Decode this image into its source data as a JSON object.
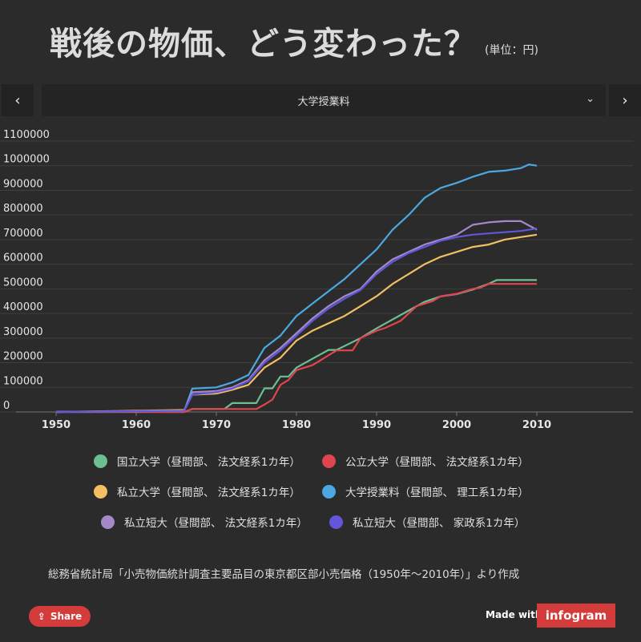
{
  "header": {
    "title": "戦後の物価、どう変わった？",
    "unit": "(単位：円)"
  },
  "selector": {
    "prev_icon": "‹",
    "next_icon": "›",
    "selected": "大学授業料",
    "caret_icon": "⌄"
  },
  "colors": {
    "national": "#6dbf92",
    "public": "#e0454f",
    "private": "#f2c062",
    "tuition": "#4aa9e0",
    "jc_law": "#a389c9",
    "jc_home": "#6356d8"
  },
  "chart_data": {
    "type": "line",
    "title": "戦後の物価、どう変わった？",
    "ylabel": "単位：円",
    "xlim": [
      1943,
      2022
    ],
    "ylim": [
      0,
      1100000
    ],
    "x_ticks": [
      1950,
      1960,
      1970,
      1980,
      1990,
      2000,
      2010
    ],
    "y_ticks": [
      0,
      100000,
      200000,
      300000,
      400000,
      500000,
      600000,
      700000,
      800000,
      900000,
      1000000,
      1100000
    ],
    "grid": true,
    "series": [
      {
        "name": "国立大学（昼間部、法文経系1カ年）",
        "color": "#6dbf92",
        "x": [
          1950,
          1966,
          1967,
          1971,
          1972,
          1975,
          1976,
          1977,
          1978,
          1979,
          1980,
          1982,
          1984,
          1985,
          1988,
          1990,
          1992,
          1994,
          1996,
          1998,
          2000,
          2002,
          2004,
          2005,
          2010
        ],
        "y": [
          0,
          0,
          12000,
          12000,
          36000,
          36000,
          96000,
          96000,
          144000,
          144000,
          180000,
          216000,
          252000,
          252000,
          300000,
          339600,
          375600,
          411600,
          447600,
          469200,
          478800,
          496800,
          520800,
          535800,
          535800
        ]
      },
      {
        "name": "公立大学（昼間部、法文経系1カ年）",
        "color": "#e0454f",
        "x": [
          1950,
          1966,
          1967,
          1975,
          1976,
          1977,
          1978,
          1979,
          1980,
          1982,
          1983,
          1984,
          1985,
          1987,
          1988,
          1990,
          1991,
          1993,
          1994,
          1995,
          1997,
          1998,
          2000,
          2002,
          2003,
          2004,
          2010
        ],
        "y": [
          0,
          0,
          12000,
          12000,
          30000,
          50000,
          110000,
          130000,
          170000,
          190000,
          210000,
          230000,
          250000,
          250000,
          300000,
          330000,
          340000,
          370000,
          400000,
          430000,
          450000,
          470000,
          480000,
          500000,
          505000,
          520000,
          520000
        ]
      },
      {
        "name": "私立大学（昼間部、法文経系1カ年）",
        "color": "#f2c062",
        "x": [
          1950,
          1956,
          1960,
          1966,
          1967,
          1970,
          1972,
          1974,
          1976,
          1978,
          1980,
          1982,
          1984,
          1986,
          1988,
          1990,
          1992,
          1994,
          1996,
          1998,
          2000,
          2002,
          2004,
          2006,
          2008,
          2010
        ],
        "y": [
          0,
          3000,
          5000,
          8000,
          70000,
          75000,
          90000,
          110000,
          180000,
          220000,
          290000,
          330000,
          360000,
          390000,
          430000,
          470000,
          520000,
          560000,
          600000,
          630000,
          650000,
          670000,
          680000,
          700000,
          710000,
          720000
        ]
      },
      {
        "name": "大学授業料（昼間部、理工系1カ年）",
        "color": "#4aa9e0",
        "x": [
          1950,
          1966,
          1967,
          1970,
          1972,
          1974,
          1976,
          1978,
          1980,
          1982,
          1984,
          1986,
          1988,
          1990,
          1992,
          1994,
          1996,
          1998,
          2000,
          2002,
          2004,
          2006,
          2008,
          2009,
          2010
        ],
        "y": [
          0,
          5000,
          95000,
          100000,
          120000,
          150000,
          260000,
          310000,
          390000,
          440000,
          490000,
          540000,
          600000,
          660000,
          740000,
          800000,
          870000,
          910000,
          930000,
          955000,
          975000,
          980000,
          990000,
          1005000,
          1000000
        ]
      },
      {
        "name": "私立短大（昼間部、法文経系1カ年）",
        "color": "#a389c9",
        "x": [
          1950,
          1966,
          1967,
          1970,
          1972,
          1974,
          1976,
          1978,
          1980,
          1982,
          1984,
          1986,
          1988,
          1990,
          1992,
          1994,
          1996,
          1998,
          2000,
          2002,
          2004,
          2006,
          2008,
          2010
        ],
        "y": [
          0,
          5000,
          80000,
          85000,
          100000,
          130000,
          210000,
          260000,
          320000,
          380000,
          430000,
          470000,
          500000,
          570000,
          620000,
          650000,
          680000,
          700000,
          720000,
          760000,
          770000,
          775000,
          775000,
          740000
        ]
      },
      {
        "name": "私立短大（昼間部、家政系1カ年）",
        "color": "#6356d8",
        "x": [
          1950,
          1966,
          1967,
          1970,
          1972,
          1974,
          1976,
          1978,
          1980,
          1982,
          1984,
          1986,
          1988,
          1990,
          1992,
          1994,
          1996,
          1998,
          2000,
          2002,
          2004,
          2006,
          2008,
          2010
        ],
        "y": [
          0,
          5000,
          70000,
          80000,
          95000,
          125000,
          200000,
          250000,
          310000,
          370000,
          420000,
          460000,
          495000,
          560000,
          610000,
          645000,
          670000,
          695000,
          710000,
          720000,
          725000,
          730000,
          735000,
          745000
        ]
      }
    ]
  },
  "legend": [
    {
      "label": "国立大学（昼間部、 法文経系1カ年）",
      "color": "#6dbf92"
    },
    {
      "label": "公立大学（昼間部、 法文経系1カ年）",
      "color": "#e0454f"
    },
    {
      "label": "私立大学（昼間部、 法文経系1カ年）",
      "color": "#f2c062"
    },
    {
      "label": "大学授業料（昼間部、 理工系1カ年）",
      "color": "#4aa9e0"
    },
    {
      "label": "私立短大（昼間部、 法文経系1カ年）",
      "color": "#a389c9"
    },
    {
      "label": "私立短大（昼間部、 家政系1カ年）",
      "color": "#6356d8"
    }
  ],
  "footer": {
    "source": "総務省統計局「小売物価統計調査主要品目の東京都区部小売価格（1950年〜2010年）」より作成",
    "share_label": "Share",
    "share_icon": "⇪",
    "made_with": "Made with",
    "brand": "infogram"
  }
}
